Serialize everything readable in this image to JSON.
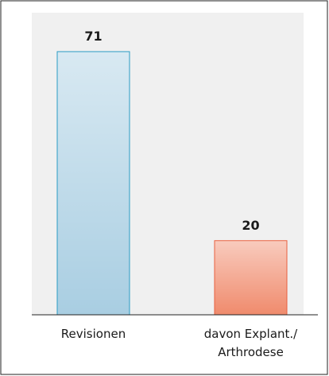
{
  "chart_data": {
    "type": "bar",
    "categories": [
      "Revisionen",
      "davon Explant./\nArthrodese"
    ],
    "values": [
      71,
      20
    ],
    "colors": [
      "#a9cee2",
      "#f08b6d"
    ],
    "edge_colors": [
      "#2a9bc4",
      "#e9603f"
    ],
    "ylim": [
      0,
      80
    ]
  }
}
